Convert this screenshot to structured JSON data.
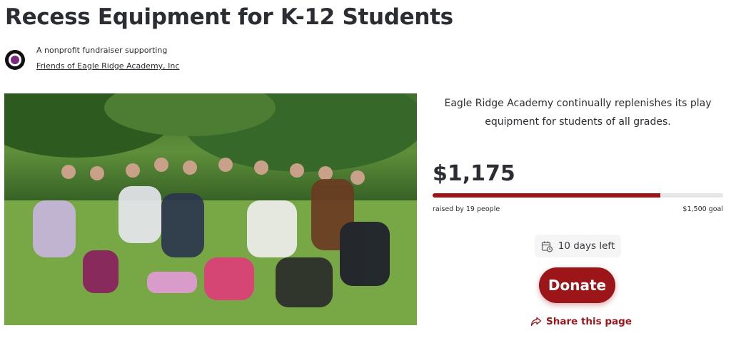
{
  "header": {
    "title": "Recess Equipment for K-12 Students",
    "subtitle": "A nonprofit fundraiser supporting",
    "organization": "Friends of Eagle Ridge Academy, Inc"
  },
  "photo": {
    "icon": "group-photo"
  },
  "summary": {
    "description": "Eagle Ridge Academy continually replenishes its play equipment for students of all grades.",
    "amount_raised": "$1,175",
    "progress_percent": 78.3,
    "raised_by": "raised by 19 people",
    "goal": "$1,500 goal",
    "days_left": "10 days left",
    "donate_label": "Donate",
    "share_label": "Share this page"
  },
  "colors": {
    "accent": "#9b1519",
    "text": "#2b2d33",
    "track": "#e6e6e6"
  }
}
